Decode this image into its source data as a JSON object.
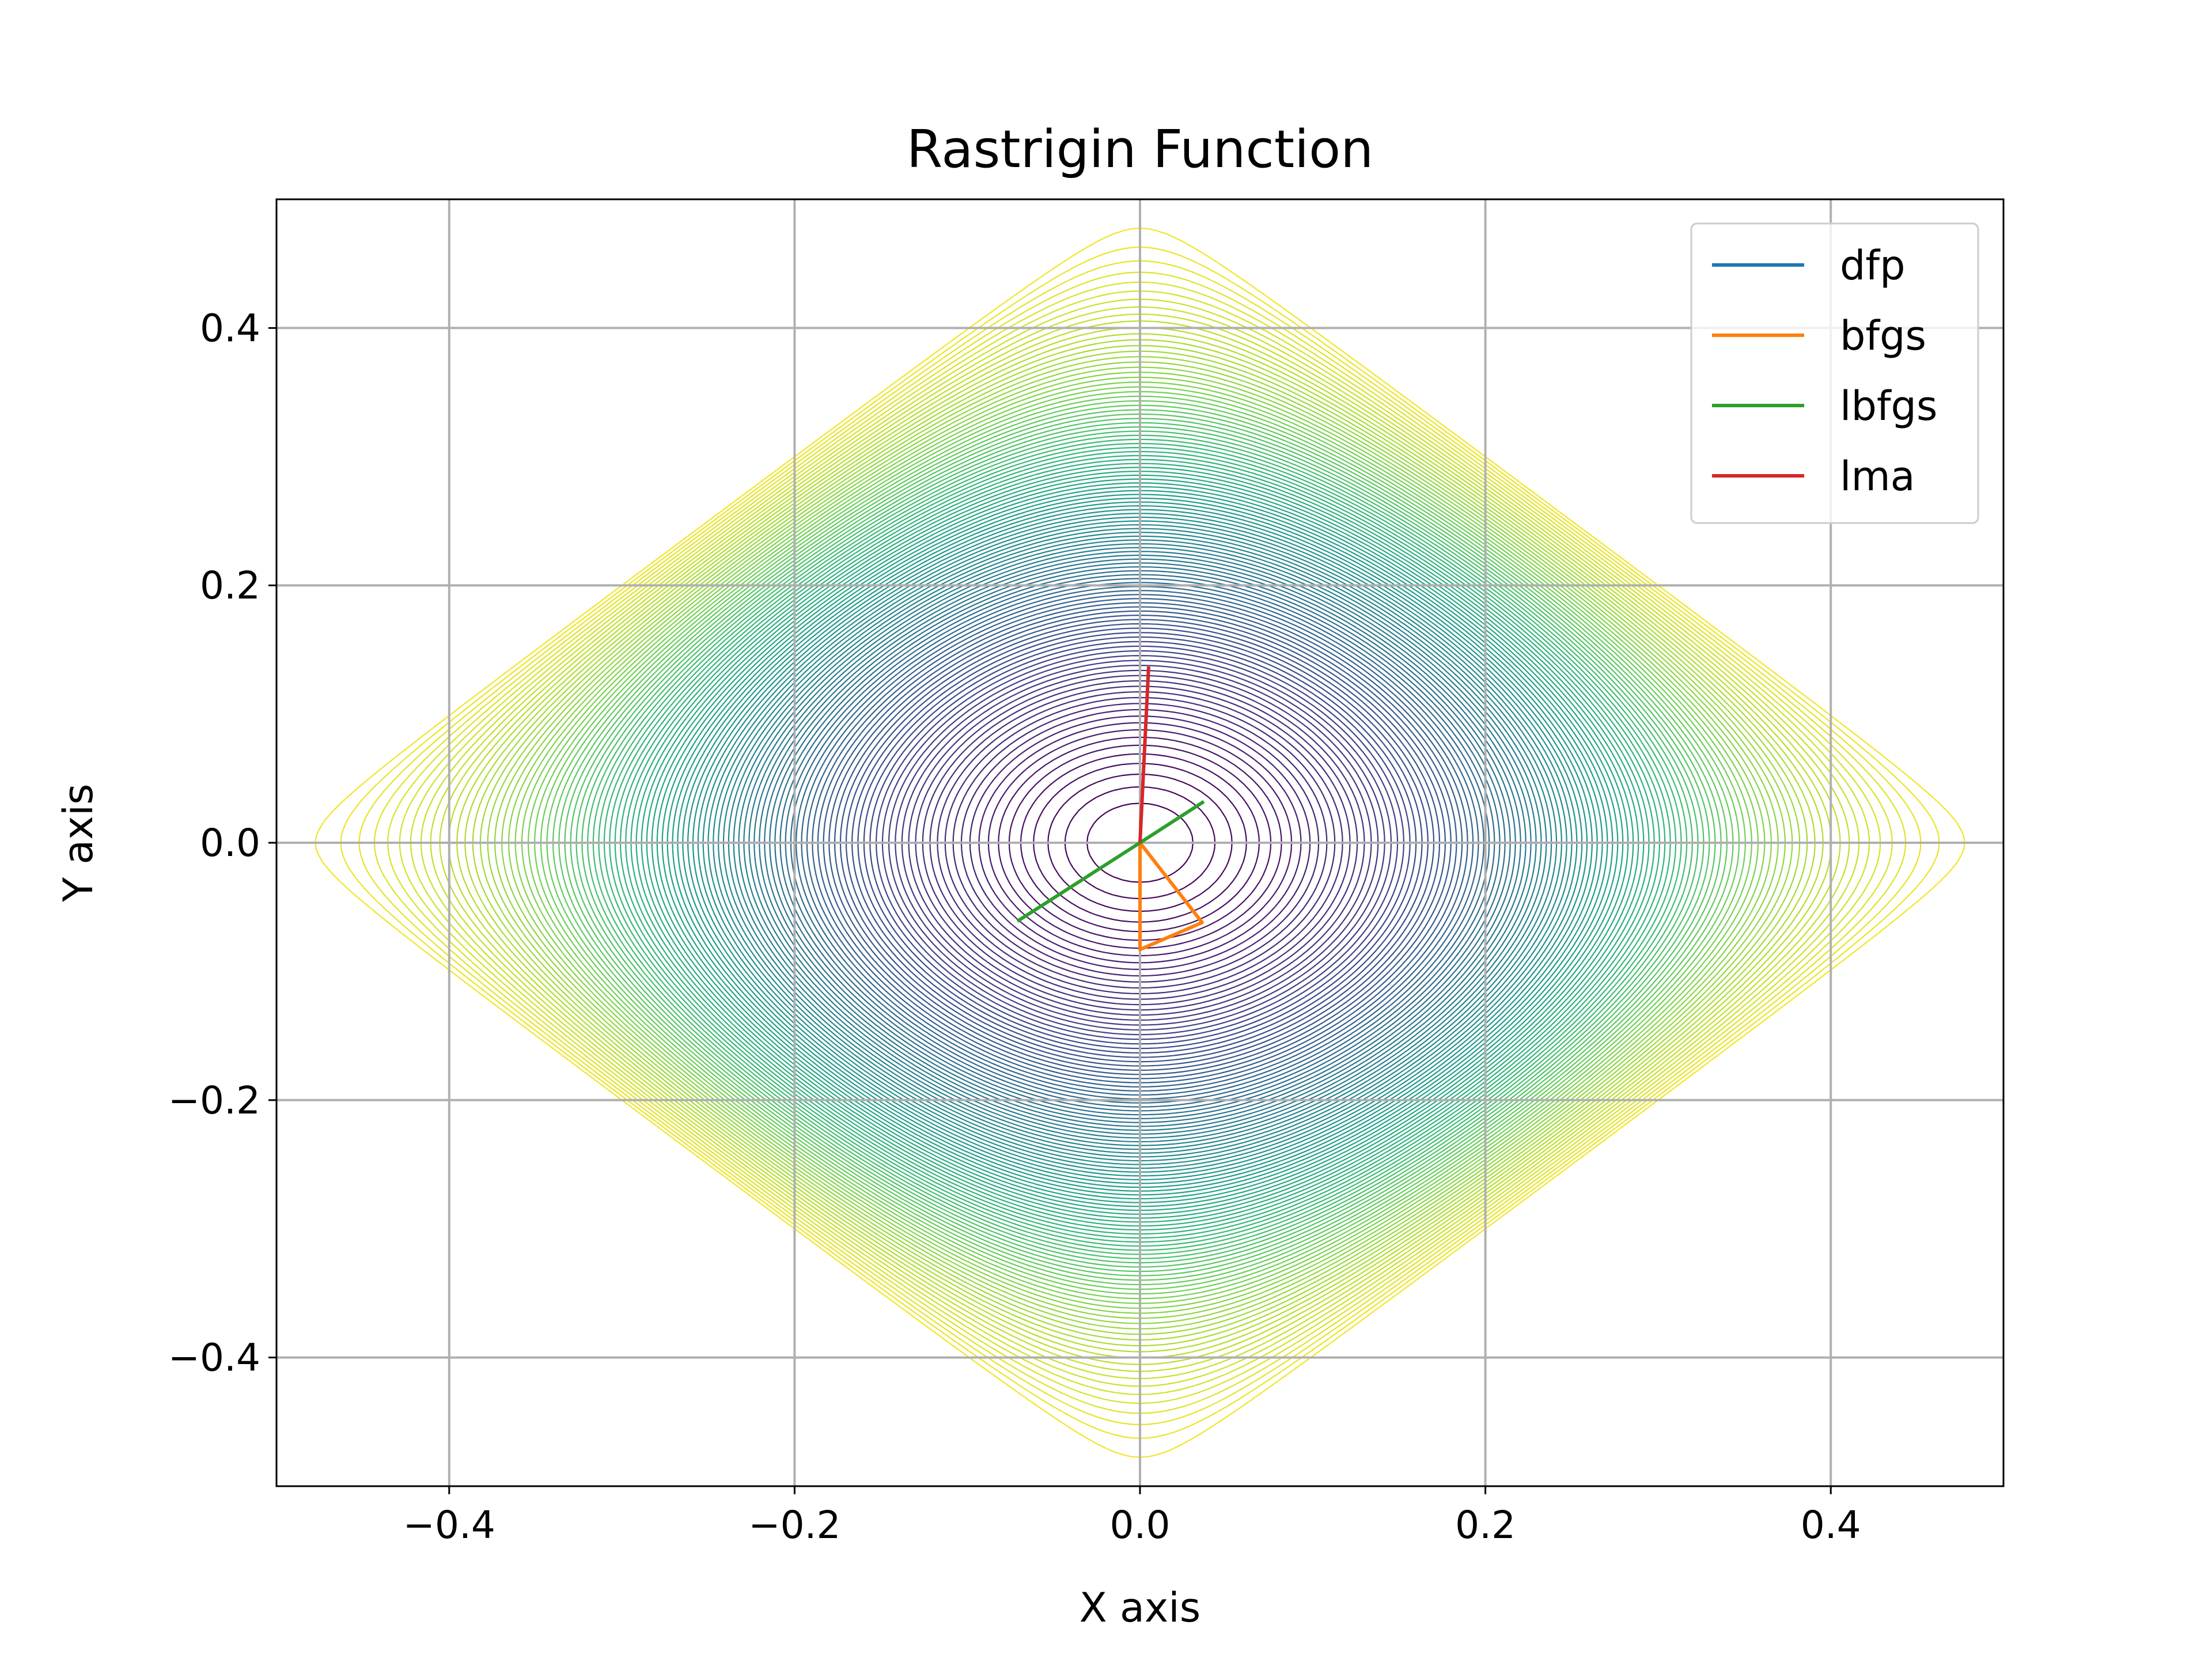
{
  "chart_data": {
    "type": "line",
    "title": "Rastrigin Function",
    "xlabel": "X axis",
    "ylabel": "Y axis",
    "xlim": [
      -0.5,
      0.5
    ],
    "ylim": [
      -0.5,
      0.5
    ],
    "grid": true,
    "legend_position": "top-right",
    "background": "contour plot of the Rastrigin function f(x,y) = 20 + x^2 - 10cos(2πx) + y^2 - 10cos(2πy), viridis colormap",
    "xticks": [
      -0.4,
      -0.2,
      0.0,
      0.2,
      0.4
    ],
    "yticks": [
      -0.4,
      -0.2,
      0.0,
      0.2,
      0.4
    ],
    "xtick_labels": [
      "−0.4",
      "−0.2",
      "0.0",
      "0.2",
      "0.4"
    ],
    "ytick_labels": [
      "−0.4",
      "−0.2",
      "0.0",
      "0.2",
      "0.4"
    ],
    "series": [
      {
        "name": "dfp",
        "color": "#1f77b4",
        "x": [
          0.0,
          0.0
        ],
        "y": [
          0.0,
          0.0
        ]
      },
      {
        "name": "bfgs",
        "color": "#ff7f0e",
        "x": [
          0.0,
          0.036,
          0.0,
          0.0
        ],
        "y": [
          0.0,
          -0.062,
          -0.083,
          0.0
        ]
      },
      {
        "name": "lbfgs",
        "color": "#2ca02c",
        "x": [
          -0.071,
          0.0,
          0.037
        ],
        "y": [
          -0.061,
          0.0,
          0.032
        ]
      },
      {
        "name": "lma",
        "color": "#d62728",
        "x": [
          0.005,
          0.0
        ],
        "y": [
          0.137,
          0.0
        ]
      }
    ]
  }
}
